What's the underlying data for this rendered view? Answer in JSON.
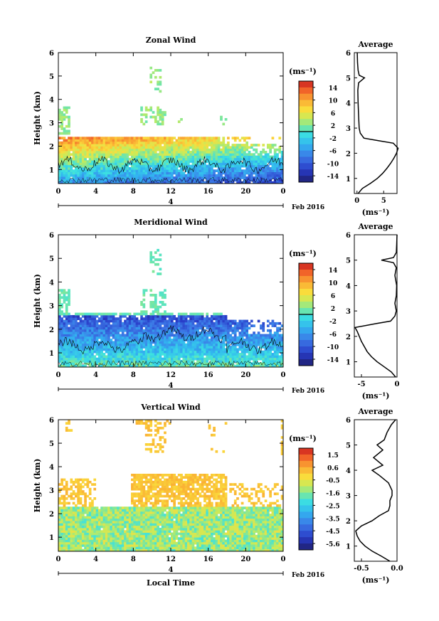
{
  "chart_data": [
    {
      "type": "heatmap",
      "title": "Zonal Wind",
      "ylabel": "Height (km)",
      "xticks": [
        "0",
        "4",
        "8",
        "12",
        "16",
        "20",
        "0"
      ],
      "yticks": [
        "1",
        "2",
        "3",
        "4",
        "5",
        "6"
      ],
      "ylim": [
        0.4,
        6
      ],
      "xlim": [
        0,
        24
      ],
      "date_label": "Feb 2016",
      "day_marker": "4",
      "colorbar": {
        "unit": "(ms⁻¹)",
        "ticks": [
          "14",
          "10",
          "6",
          "2",
          "-2",
          "-6",
          "-10",
          "-14"
        ],
        "range": [
          -16,
          16
        ],
        "contour_at": 0
      },
      "profile": {
        "title": "Average",
        "xlabel": "(ms⁻¹)",
        "xticks": [
          "0",
          "5"
        ],
        "xlim": [
          -0.5,
          7.5
        ],
        "heights": [
          0.4,
          0.6,
          0.8,
          1.0,
          1.2,
          1.4,
          1.6,
          1.8,
          2.0,
          2.2,
          2.4,
          2.5,
          2.6,
          2.8,
          3.0,
          3.5,
          4.0,
          4.5,
          4.8,
          5.0,
          5.1,
          5.3,
          5.6,
          6.0
        ],
        "values": [
          0.2,
          1.0,
          2.5,
          3.8,
          4.8,
          5.6,
          6.3,
          6.9,
          7.4,
          7.7,
          6.8,
          4.0,
          1.3,
          0.6,
          0.4,
          0.3,
          0.2,
          0.15,
          0.3,
          1.4,
          0.4,
          0.2,
          0.1,
          0.05
        ]
      }
    },
    {
      "type": "heatmap",
      "title": "Meridional Wind",
      "ylabel": "Height (km)",
      "xticks": [
        "0",
        "4",
        "8",
        "12",
        "16",
        "20",
        "0"
      ],
      "yticks": [
        "1",
        "2",
        "3",
        "4",
        "5",
        "6"
      ],
      "ylim": [
        0.4,
        6
      ],
      "xlim": [
        0,
        24
      ],
      "date_label": "Feb 2016",
      "day_marker": "4",
      "colorbar": {
        "unit": "(ms⁻¹)",
        "ticks": [
          "14",
          "10",
          "6",
          "2",
          "-2",
          "-6",
          "-10",
          "-14"
        ],
        "range": [
          -16,
          16
        ],
        "contour_at": 0
      },
      "profile": {
        "title": "Average",
        "xlabel": "(ms⁻¹)",
        "xticks": [
          "-5",
          "0"
        ],
        "xlim": [
          -6,
          0
        ],
        "heights": [
          0.4,
          0.6,
          0.8,
          1.0,
          1.2,
          1.4,
          1.6,
          1.8,
          2.0,
          2.2,
          2.35,
          2.5,
          2.6,
          2.8,
          3.0,
          3.3,
          3.6,
          4.0,
          4.4,
          4.7,
          4.9,
          5.0,
          5.1,
          5.3,
          5.6,
          6.0
        ],
        "values": [
          -0.2,
          -0.8,
          -1.8,
          -2.8,
          -3.6,
          -4.2,
          -4.6,
          -5.0,
          -5.3,
          -5.6,
          -5.9,
          -3.0,
          -0.9,
          -0.3,
          -0.1,
          -0.3,
          -0.1,
          -0.05,
          -0.3,
          -0.1,
          -0.5,
          -2.2,
          -0.5,
          -0.1,
          -0.05,
          0.0
        ]
      }
    },
    {
      "type": "heatmap",
      "title": "Vertical Wind",
      "ylabel": "Height (km)",
      "xlabel": "Local Time",
      "xticks": [
        "0",
        "4",
        "8",
        "12",
        "16",
        "20",
        "0"
      ],
      "yticks": [
        "1",
        "2",
        "3",
        "4",
        "5",
        "6"
      ],
      "ylim": [
        0.4,
        6
      ],
      "xlim": [
        0,
        24
      ],
      "date_label": "Feb 2016",
      "day_marker": "4",
      "colorbar": {
        "unit": "(ms⁻¹)",
        "ticks": [
          "1.5",
          "0.6",
          "-0.5",
          "-1.6",
          "-2.5",
          "-3.5",
          "-4.5",
          "-5.6"
        ],
        "range": [
          -6,
          2
        ]
      },
      "profile": {
        "title": "Average",
        "xlabel": "(ms⁻¹)",
        "xticks": [
          "-0.5",
          "0.0"
        ],
        "xlim": [
          -0.6,
          0.0
        ],
        "heights": [
          0.4,
          0.6,
          0.8,
          1.0,
          1.2,
          1.4,
          1.6,
          1.8,
          2.0,
          2.2,
          2.4,
          2.6,
          2.8,
          3.0,
          3.2,
          3.5,
          3.8,
          4.0,
          4.2,
          4.5,
          4.8,
          5.0,
          5.2,
          5.5,
          5.8,
          6.0
        ],
        "values": [
          -0.1,
          -0.22,
          -0.35,
          -0.45,
          -0.52,
          -0.56,
          -0.58,
          -0.5,
          -0.35,
          -0.25,
          -0.12,
          -0.1,
          -0.1,
          -0.07,
          -0.07,
          -0.12,
          -0.25,
          -0.35,
          -0.2,
          -0.33,
          -0.2,
          -0.28,
          -0.18,
          -0.14,
          -0.08,
          -0.02
        ]
      }
    }
  ]
}
